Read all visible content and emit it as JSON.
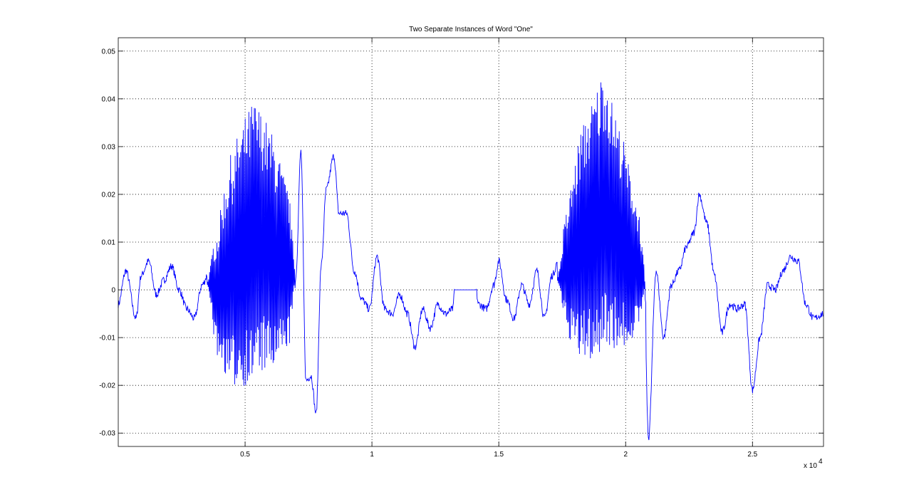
{
  "chart_data": {
    "type": "line",
    "title": "Two Separate Instances of Word \"One\"",
    "xlabel": "",
    "ylabel": "",
    "xlim": [
      0,
      27800
    ],
    "ylim": [
      -0.0328,
      0.0528
    ],
    "x_ticks": [
      5000,
      10000,
      15000,
      20000,
      25000
    ],
    "x_tick_labels": [
      "0.5",
      "1",
      "1.5",
      "2",
      "2.5"
    ],
    "x_exponent_label": "x 10",
    "x_exponent_power": "4",
    "y_ticks": [
      -0.03,
      -0.02,
      -0.01,
      0,
      0.01,
      0.02,
      0.03,
      0.04,
      0.05
    ],
    "y_tick_labels": [
      "-0.03",
      "-0.02",
      "-0.01",
      "0",
      "0.01",
      "0.02",
      "0.03",
      "0.04",
      "0.05"
    ],
    "grid": true,
    "line_color": "#0000ff",
    "envelope": [
      [
        0,
        -0.003
      ],
      [
        300,
        0.004
      ],
      [
        700,
        -0.006
      ],
      [
        900,
        0.003
      ],
      [
        1200,
        0.006
      ],
      [
        1500,
        -0.001
      ],
      [
        1800,
        0.002
      ],
      [
        2100,
        0.005
      ],
      [
        2400,
        0.0
      ],
      [
        2700,
        -0.004
      ],
      [
        3000,
        -0.006
      ],
      [
        3300,
        0.001
      ],
      [
        3600,
        0.004
      ],
      [
        3900,
        -0.002
      ],
      [
        4200,
        0.007
      ],
      [
        4500,
        0.012
      ],
      [
        4800,
        0.02
      ],
      [
        5100,
        0.024
      ],
      [
        5400,
        0.03
      ],
      [
        5700,
        0.028
      ],
      [
        6000,
        0.022
      ],
      [
        6300,
        0.018
      ],
      [
        6600,
        0.014
      ],
      [
        6900,
        0.01
      ],
      [
        7000,
        0.003
      ],
      [
        7200,
        0.029
      ],
      [
        7400,
        -0.019
      ],
      [
        7600,
        -0.018
      ],
      [
        7800,
        -0.026
      ],
      [
        8000,
        0.005
      ],
      [
        8200,
        0.021
      ],
      [
        8500,
        0.028
      ],
      [
        8700,
        0.016
      ],
      [
        9000,
        0.016
      ],
      [
        9300,
        0.004
      ],
      [
        9600,
        -0.002
      ],
      [
        9900,
        -0.004
      ],
      [
        10200,
        0.007
      ],
      [
        10500,
        -0.004
      ],
      [
        10800,
        -0.005
      ],
      [
        11100,
        -0.001
      ],
      [
        11400,
        -0.005
      ],
      [
        11700,
        -0.012
      ],
      [
        12000,
        -0.004
      ],
      [
        12300,
        -0.008
      ],
      [
        12600,
        -0.003
      ],
      [
        12900,
        -0.005
      ],
      [
        13200,
        -0.004
      ],
      [
        13250,
        0.0
      ],
      [
        14100,
        0.0
      ],
      [
        14200,
        -0.003
      ],
      [
        14500,
        -0.004
      ],
      [
        14800,
        0.001
      ],
      [
        15000,
        0.006
      ],
      [
        15300,
        -0.002
      ],
      [
        15600,
        -0.006
      ],
      [
        15900,
        0.001
      ],
      [
        16200,
        -0.003
      ],
      [
        16500,
        0.004
      ],
      [
        16800,
        -0.006
      ],
      [
        17100,
        0.003
      ],
      [
        17400,
        0.007
      ],
      [
        17700,
        0.012
      ],
      [
        18000,
        0.02
      ],
      [
        18300,
        0.028
      ],
      [
        18600,
        0.034
      ],
      [
        18900,
        0.04
      ],
      [
        19200,
        0.05
      ],
      [
        19500,
        0.038
      ],
      [
        19800,
        0.03
      ],
      [
        20100,
        0.022
      ],
      [
        20400,
        0.014
      ],
      [
        20700,
        0.008
      ],
      [
        20900,
        -0.031
      ],
      [
        21200,
        0.004
      ],
      [
        21500,
        -0.01
      ],
      [
        21800,
        0.001
      ],
      [
        22100,
        0.004
      ],
      [
        22400,
        0.009
      ],
      [
        22700,
        0.012
      ],
      [
        22900,
        0.02
      ],
      [
        23200,
        0.014
      ],
      [
        23500,
        0.003
      ],
      [
        23800,
        -0.009
      ],
      [
        24100,
        -0.003
      ],
      [
        24400,
        -0.004
      ],
      [
        24700,
        -0.003
      ],
      [
        25000,
        -0.021
      ],
      [
        25300,
        -0.01
      ],
      [
        25600,
        0.001
      ],
      [
        25900,
        0.0
      ],
      [
        26200,
        0.004
      ],
      [
        26500,
        0.007
      ],
      [
        26800,
        0.006
      ],
      [
        27100,
        -0.003
      ],
      [
        27400,
        -0.006
      ],
      [
        27800,
        -0.005
      ]
    ],
    "bursts": [
      {
        "from": 3500,
        "to": 7000,
        "amplitude": [
          0.004,
          0.024,
          0.03,
          0.025,
          0.012
        ]
      },
      {
        "from": 17300,
        "to": 20800,
        "amplitude": [
          0.004,
          0.024,
          0.03,
          0.022,
          0.008
        ]
      }
    ]
  }
}
